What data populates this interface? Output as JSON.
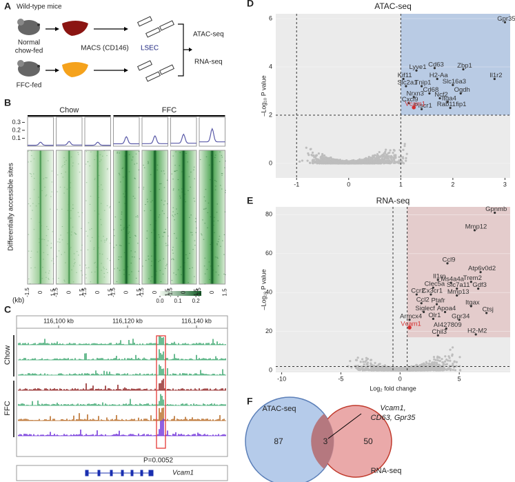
{
  "panel_a": {
    "letter": "A",
    "title": "Wild-type mice",
    "groups": [
      {
        "label_lines": [
          "Normal",
          "chow-fed"
        ]
      },
      {
        "label_lines": [
          "FFC-fed"
        ]
      }
    ],
    "method": "MACS (CD146)",
    "cell": "LSEC",
    "outputs": [
      "ATAC-seq",
      "RNA-seq"
    ]
  },
  "panel_b": {
    "letter": "B",
    "groups": [
      "Chow",
      "FFC"
    ],
    "ylabel": "Differentially accessible sites",
    "profile_ylim": [
      0,
      0.33
    ],
    "profile_yticks": [
      0.1,
      0.2,
      0.3
    ],
    "profile_color": "#5a5aa8",
    "profile_peaks": [
      0.05,
      0.06,
      0.05,
      0.12,
      0.13,
      0.15,
      0.22
    ],
    "column_groups": [
      0,
      0,
      0,
      1,
      1,
      1,
      1
    ],
    "xticks": [
      -1.5,
      0,
      1.5
    ],
    "xunit": "(kb)",
    "colorbar_ticks": [
      {
        "value": 0,
        "label": "0.0"
      },
      0.1,
      0.2
    ]
  },
  "panel_c": {
    "letter": "C",
    "coord_labels": [
      "116,100 kb",
      "116,120 kb",
      "116,140 kb"
    ],
    "track_groups": [
      {
        "label": "Chow",
        "colors": [
          "#3aa66e",
          "#3aa66e",
          "#3aa66e"
        ]
      },
      {
        "label": "FFC",
        "colors": [
          "#8b1a1a",
          "#3aa66e",
          "#b5651d",
          "#6a2bd9"
        ]
      }
    ],
    "p_value_text": "P=0.0052",
    "gene": "Vcam1"
  },
  "chart_data": [
    {
      "type": "scatter",
      "panel": "D",
      "title": "ATAC-seq",
      "ylabel": "–Log₁₀ P value",
      "xlim": [
        -1.4,
        3.1
      ],
      "ylim": [
        -0.6,
        6.2
      ],
      "xticks": [
        -1,
        0,
        1,
        2,
        3
      ],
      "yticks": [
        0,
        2,
        4,
        6
      ],
      "thresholds": {
        "x": [
          -1,
          1
        ],
        "y": 2
      },
      "region_color": "#b9cbe4",
      "region_ymin": 2,
      "point_color": "#333",
      "highlight_color": "#d32f2f",
      "cloud_color": "#bdbdbd",
      "points": [
        {
          "label": "Gpr35",
          "x": 3.0,
          "y": 5.85
        },
        {
          "label": "Lyve1",
          "x": 1.3,
          "y": 3.85
        },
        {
          "label": "Cd63",
          "x": 1.65,
          "y": 3.95
        },
        {
          "label": "Zbp1",
          "x": 2.2,
          "y": 3.9
        },
        {
          "label": "Kif11",
          "x": 1.05,
          "y": 3.5
        },
        {
          "label": "H2-Aa",
          "x": 1.7,
          "y": 3.5
        },
        {
          "label": "Il1r2",
          "x": 2.8,
          "y": 3.5
        },
        {
          "label": "Slc2a1",
          "x": 1.1,
          "y": 3.2
        },
        {
          "label": "Tnip1",
          "x": 1.4,
          "y": 3.2
        },
        {
          "label": "Slc16a3",
          "x": 2.0,
          "y": 3.25
        },
        {
          "label": "Cd68",
          "x": 1.55,
          "y": 2.9
        },
        {
          "label": "Ogdh",
          "x": 2.15,
          "y": 2.9
        },
        {
          "label": "Nrxn3",
          "x": 1.25,
          "y": 2.75
        },
        {
          "label": "Ncf2",
          "x": 1.75,
          "y": 2.7
        },
        {
          "label": "Itga4",
          "x": 1.9,
          "y": 2.55
        },
        {
          "label": "Cxcl9",
          "x": 1.15,
          "y": 2.5
        },
        {
          "label": "Plscr1",
          "x": 1.4,
          "y": 2.25
        },
        {
          "label": "Rab11fip1",
          "x": 1.95,
          "y": 2.3
        },
        {
          "label": "Vcam1",
          "x": 1.25,
          "y": 2.32,
          "highlight": true
        }
      ]
    },
    {
      "type": "scatter",
      "panel": "E",
      "title": "RNA-seq",
      "ylabel": "–Log₁₀ P value",
      "xlabel": "Log₂ fold change",
      "xlim": [
        -10.5,
        9.3
      ],
      "ylim": [
        -1,
        84
      ],
      "xticks": [
        -10,
        -5,
        0,
        5
      ],
      "yticks": [
        0,
        20,
        40,
        60,
        80
      ],
      "thresholds": {
        "x": [
          -0.6,
          0.6
        ],
        "y": 2
      },
      "region_color": "#e4cccc",
      "region_ymin": 17,
      "point_color": "#333",
      "highlight_color": "#d32f2f",
      "cloud_color": "#bdbdbd",
      "points": [
        {
          "label": "Gpnmb",
          "x": 8.0,
          "y": 81
        },
        {
          "label": "Mmp12",
          "x": 6.3,
          "y": 72
        },
        {
          "label": "Ccl9",
          "x": 4.0,
          "y": 55
        },
        {
          "label": "Atp6v0d2",
          "x": 6.8,
          "y": 50.5
        },
        {
          "label": "Il1rn",
          "x": 3.2,
          "y": 46.5
        },
        {
          "label": "Ms4a4a",
          "x": 4.3,
          "y": 45
        },
        {
          "label": "Trem2",
          "x": 6.0,
          "y": 45.5
        },
        {
          "label": "Clec5a",
          "x": 2.8,
          "y": 42.5
        },
        {
          "label": "Slc7a11",
          "x": 4.8,
          "y": 42
        },
        {
          "label": "Gdf3",
          "x": 6.6,
          "y": 42
        },
        {
          "label": "Ccr2",
          "x": 1.4,
          "y": 39
        },
        {
          "label": "Cx3cr1",
          "x": 2.6,
          "y": 39
        },
        {
          "label": "Mmp13",
          "x": 4.8,
          "y": 38.5
        },
        {
          "label": "Ccl2",
          "x": 1.8,
          "y": 34.5
        },
        {
          "label": "Ptafr",
          "x": 3.1,
          "y": 34
        },
        {
          "label": "Itgax",
          "x": 6.0,
          "y": 33
        },
        {
          "label": "Siglecf",
          "x": 2.0,
          "y": 30
        },
        {
          "label": "Apoa4",
          "x": 3.8,
          "y": 30
        },
        {
          "label": "Ctsj",
          "x": 7.3,
          "y": 29.5
        },
        {
          "label": "Olr1",
          "x": 2.8,
          "y": 26.5
        },
        {
          "label": "Armcx4",
          "x": 0.8,
          "y": 26
        },
        {
          "label": "Gpr34",
          "x": 5.0,
          "y": 26
        },
        {
          "label": "Vcam1",
          "x": 0.8,
          "y": 22,
          "highlight": true
        },
        {
          "label": "AI427809",
          "x": 3.9,
          "y": 21.5
        },
        {
          "label": "H2-M2",
          "x": 6.4,
          "y": 18.5
        },
        {
          "label": "Chil3",
          "x": 3.2,
          "y": 18
        }
      ]
    },
    {
      "type": "venn",
      "panel": "F",
      "sets": [
        {
          "name": "ATAC-seq",
          "count": 87,
          "color": "#a8c2e6"
        },
        {
          "name": "RNA-seq",
          "count": 50,
          "color": "#e69a9a"
        }
      ],
      "intersection": 3,
      "annotation_lines": [
        "Vcam1,",
        "CD63, Gpr35"
      ]
    }
  ]
}
